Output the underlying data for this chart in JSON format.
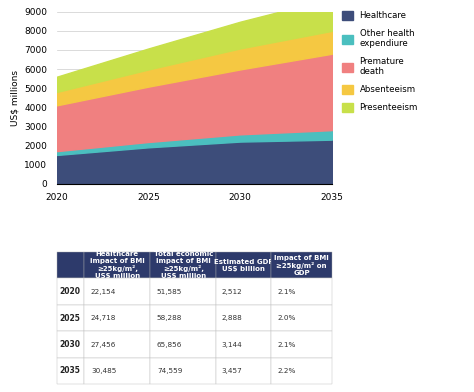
{
  "years": [
    2020,
    2025,
    2030,
    2035
  ],
  "healthcare": [
    1500,
    1900,
    2200,
    2300
  ],
  "other_health": [
    200,
    280,
    380,
    500
  ],
  "premature_death": [
    2400,
    2900,
    3400,
    4000
  ],
  "absenteeism": [
    700,
    900,
    1100,
    1200
  ],
  "presenteeism": [
    800,
    1100,
    1400,
    1700
  ],
  "colors": {
    "healthcare": "#3d4d7a",
    "other_health": "#4bbfbf",
    "premature_death": "#f08080",
    "absenteeism": "#f5c842",
    "presenteeism": "#c8e04a"
  },
  "ylabel": "US$ millions",
  "yticks": [
    0,
    1000,
    2000,
    3000,
    4000,
    5000,
    6000,
    7000,
    8000,
    9000
  ],
  "xticks": [
    2020,
    2025,
    2030,
    2035
  ],
  "table_header_color": "#2d3a6b",
  "table_header_text_color": "#ffffff",
  "table_years": [
    "2020",
    "2025",
    "2030",
    "2035"
  ],
  "table_col1": [
    "22,154",
    "24,718",
    "27,456",
    "30,485"
  ],
  "table_col2": [
    "51,585",
    "58,288",
    "65,856",
    "74,559"
  ],
  "table_col3": [
    "2,512",
    "2,888",
    "3,144",
    "3,457"
  ],
  "table_col4": [
    "2.1%",
    "2.0%",
    "2.1%",
    "2.2%"
  ],
  "table_headers": [
    "Healthcare\nimpact of BMI\n≥25kg/m²,\nUS$ million",
    "Total economic\nimpact of BMI\n≥25kg/m²,\nUS$ million",
    "Estimated GDP\nUS$ billion",
    "Impact of BMI\n≥25kg/m² on\nGDP"
  ],
  "legend_labels": [
    "Healthcare",
    "Other health\nexpendiure",
    "Premature\ndeath",
    "Absenteeism",
    "Presenteeism"
  ]
}
